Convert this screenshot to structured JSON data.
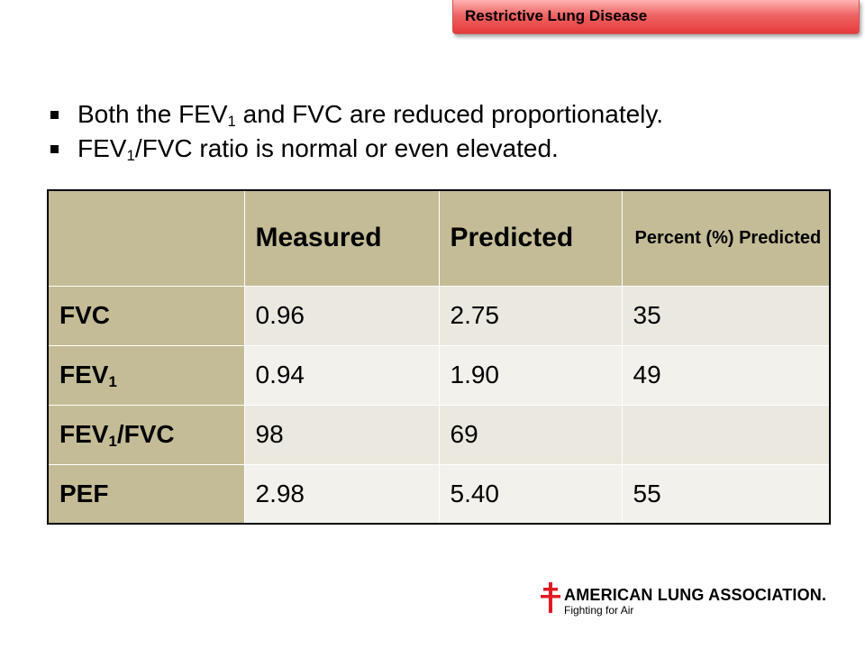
{
  "slide": {
    "title": "Restrictive Lung Disease",
    "bullets": [
      {
        "before": "Both the FEV",
        "sub": "1",
        "after": " and FVC are reduced proportionately."
      },
      {
        "before": "FEV",
        "sub": "1",
        "after": "/FVC ratio is normal or even elevated."
      }
    ]
  },
  "table": {
    "headers": [
      "",
      "Measured",
      "Predicted",
      "Percent (%) Predicted"
    ],
    "rows": [
      {
        "label": "FVC",
        "label_sub": "",
        "label_after": "",
        "measured": "0.96",
        "predicted": "2.75",
        "percent": "35"
      },
      {
        "label": "FEV",
        "label_sub": "1",
        "label_after": "",
        "measured": "0.94",
        "predicted": "1.90",
        "percent": "49"
      },
      {
        "label": "FEV",
        "label_sub": "1",
        "label_after": "/FVC",
        "measured": "98",
        "predicted": "69",
        "percent": ""
      },
      {
        "label": "PEF",
        "label_sub": "",
        "label_after": "",
        "measured": "2.98",
        "predicted": "5.40",
        "percent": "55"
      }
    ]
  },
  "logo": {
    "name": "AMERICAN LUNG ASSOCIATION.",
    "tagline": "Fighting for Air",
    "cross_color": "#e21b23"
  },
  "colors": {
    "header_bg": "#c4bc96",
    "row_bg": "#ebe8df",
    "title_tag_red": "#e63a3a"
  }
}
